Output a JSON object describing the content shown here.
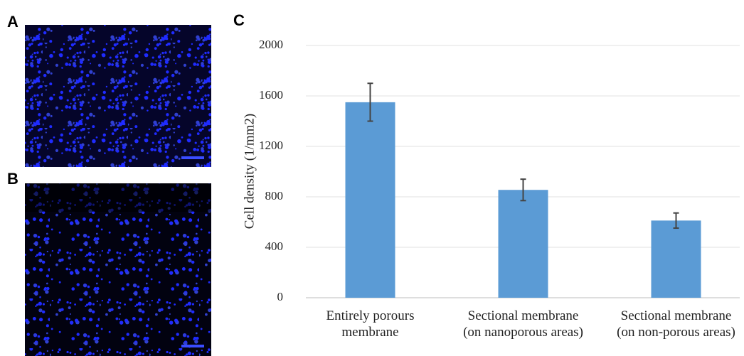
{
  "panel_labels": [
    "A",
    "B",
    "C"
  ],
  "chart_data": {
    "type": "bar",
    "y_label": "Cell density (1/mm2)",
    "categories": [
      "Entirely porours\nmembrane",
      "Sectional membrane\n(on nanoporous areas)",
      "Sectional membrane\n(on non-porous areas)"
    ],
    "values": [
      1550,
      855,
      612
    ],
    "errors": [
      150,
      85,
      60
    ],
    "color": "#5b9bd5",
    "ylim": [
      0,
      2000
    ],
    "yticks": [
      0,
      400,
      800,
      1200,
      1600,
      2000
    ],
    "grid": true
  }
}
